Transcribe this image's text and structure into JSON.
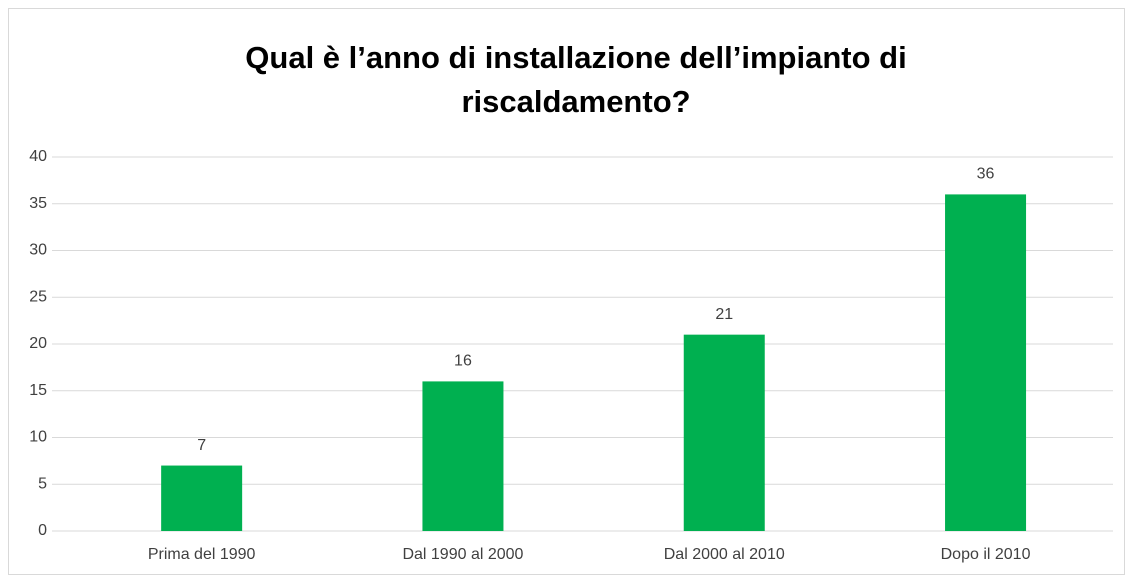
{
  "chart_data": {
    "type": "bar",
    "title": "Qual è l’anno di installazione dell’impianto di riscaldamento?",
    "categories": [
      "Prima del 1990",
      "Dal 1990 al 2000",
      "Dal 2000 al 2010",
      "Dopo il 2010"
    ],
    "values": [
      7,
      16,
      21,
      36
    ],
    "color": "#00b050",
    "ylim": [
      0,
      40
    ],
    "yticks": [
      0,
      5,
      10,
      15,
      20,
      25,
      30,
      35,
      40
    ],
    "grid": true
  }
}
